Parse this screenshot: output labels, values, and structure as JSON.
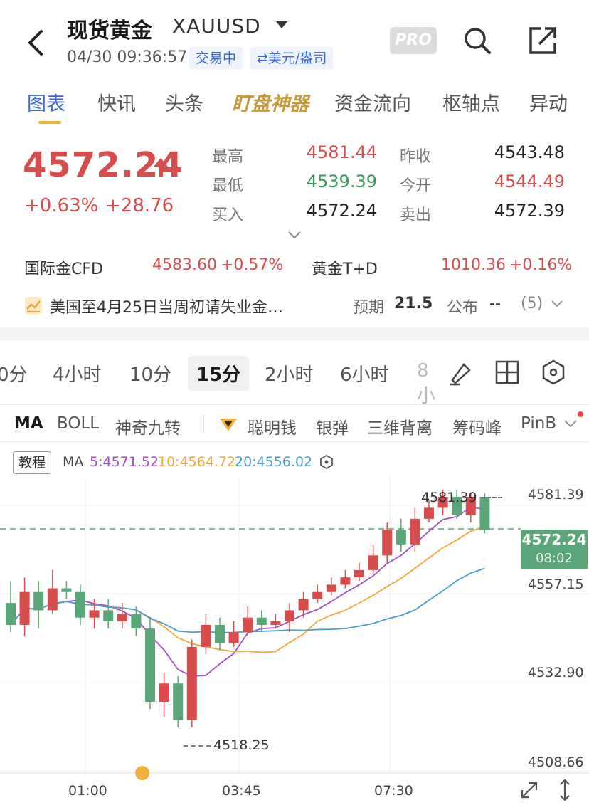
{
  "header": {
    "title": "现货黄金",
    "code": "XAUUSD",
    "datetime": "04/30 09:36:57",
    "status_tag": "交易中",
    "currency_tag": "⇄美元/盎司",
    "pro_label": "PRO"
  },
  "tabs": [
    "图表",
    "快讯",
    "头条",
    "盯盘神器",
    "资金流向",
    "枢轴点",
    "异动"
  ],
  "quote": {
    "price": "4572.24",
    "change_pct": "+0.63%",
    "change_abs": "+28.76",
    "high_label": "最高",
    "high": "4581.44",
    "low_label": "最低",
    "low": "4539.39",
    "bid_label": "买入",
    "bid": "4572.24",
    "prev_close_label": "昨收",
    "prev_close": "4543.48",
    "open_label": "今开",
    "open": "4544.49",
    "ask_label": "卖出",
    "ask": "4572.39"
  },
  "related": {
    "cfd_label": "国际金CFD",
    "cfd_price": "4583.60",
    "cfd_change": "+0.57%",
    "td_label": "黄金T+D",
    "td_price": "1010.36",
    "td_change": "+0.16%"
  },
  "news": {
    "title": "美国至4月25日当周初请失业金…",
    "forecast_label": "预期",
    "forecast": "21.5",
    "publish_label": "公布",
    "publish": "--",
    "count": "(5)"
  },
  "periods": [
    "0分",
    "4小时",
    "10分",
    "15分",
    "2小时",
    "6小时",
    "8小"
  ],
  "active_period": "15分",
  "indicators": [
    "MA",
    "BOLL",
    "神奇九转",
    "聪明钱",
    "银弹",
    "三维背离",
    "筹码峰",
    "PinB"
  ],
  "chart_toolbar": {
    "tutorial_label": "教程",
    "ma_label": "MA",
    "ma5": "5:4571.52",
    "ma10": "10:4564.72",
    "ma20": "20:4556.02"
  },
  "chart_data": {
    "type": "candlestick",
    "y_axis_ticks": [
      "4581.39",
      "4557.15",
      "4532.90",
      "4508.66"
    ],
    "x_axis_ticks": [
      "01:00",
      "03:45",
      "07:30"
    ],
    "max_marker": "4581.39",
    "min_marker": "4518.25",
    "current_price": "4572.24",
    "countdown": "08:02",
    "ylim": [
      4508.66,
      4581.39
    ],
    "colors": {
      "up": "#d94c4c",
      "down": "#5aa678",
      "ma5": "#a34fc8",
      "ma10": "#f2a93a",
      "ma20": "#4a9fc9"
    },
    "candles": [
      [
        4552,
        4546,
        4558,
        4544
      ],
      [
        4546,
        4555,
        4559,
        4543
      ],
      [
        4555,
        4550,
        4558,
        4545
      ],
      [
        4550,
        4556,
        4561,
        4549
      ],
      [
        4556,
        4555,
        4558,
        4553
      ],
      [
        4555,
        4548,
        4557,
        4546
      ],
      [
        4548,
        4550,
        4553,
        4545
      ],
      [
        4550,
        4547,
        4553,
        4545
      ],
      [
        4547,
        4549,
        4552,
        4545
      ],
      [
        4549,
        4545,
        4551,
        4543
      ],
      [
        4545,
        4525,
        4548,
        4523
      ],
      [
        4525,
        4530,
        4533,
        4521
      ],
      [
        4530,
        4520,
        4532,
        4518
      ],
      [
        4520,
        4540,
        4542,
        4518
      ],
      [
        4540,
        4546,
        4549,
        4538
      ],
      [
        4546,
        4541,
        4548,
        4539
      ],
      [
        4541,
        4544,
        4547,
        4540
      ],
      [
        4544,
        4548,
        4551,
        4543
      ],
      [
        4548,
        4546,
        4550,
        4544
      ],
      [
        4546,
        4547,
        4549,
        4545
      ],
      [
        4547,
        4550,
        4552,
        4544
      ],
      [
        4550,
        4553,
        4555,
        4548
      ],
      [
        4553,
        4555,
        4557,
        4552
      ],
      [
        4555,
        4557,
        4559,
        4554
      ],
      [
        4557,
        4559,
        4561,
        4556
      ],
      [
        4559,
        4561,
        4563,
        4558
      ],
      [
        4561,
        4565,
        4568,
        4560
      ],
      [
        4565,
        4572,
        4574,
        4563
      ],
      [
        4572,
        4568,
        4575,
        4566
      ],
      [
        4568,
        4575,
        4578,
        4566
      ],
      [
        4575,
        4578,
        4580,
        4574
      ],
      [
        4578,
        4581,
        4583,
        4576
      ],
      [
        4581,
        4576,
        4583,
        4575
      ],
      [
        4576,
        4581,
        4582,
        4574
      ],
      [
        4581,
        4572,
        4582,
        4571
      ]
    ]
  }
}
